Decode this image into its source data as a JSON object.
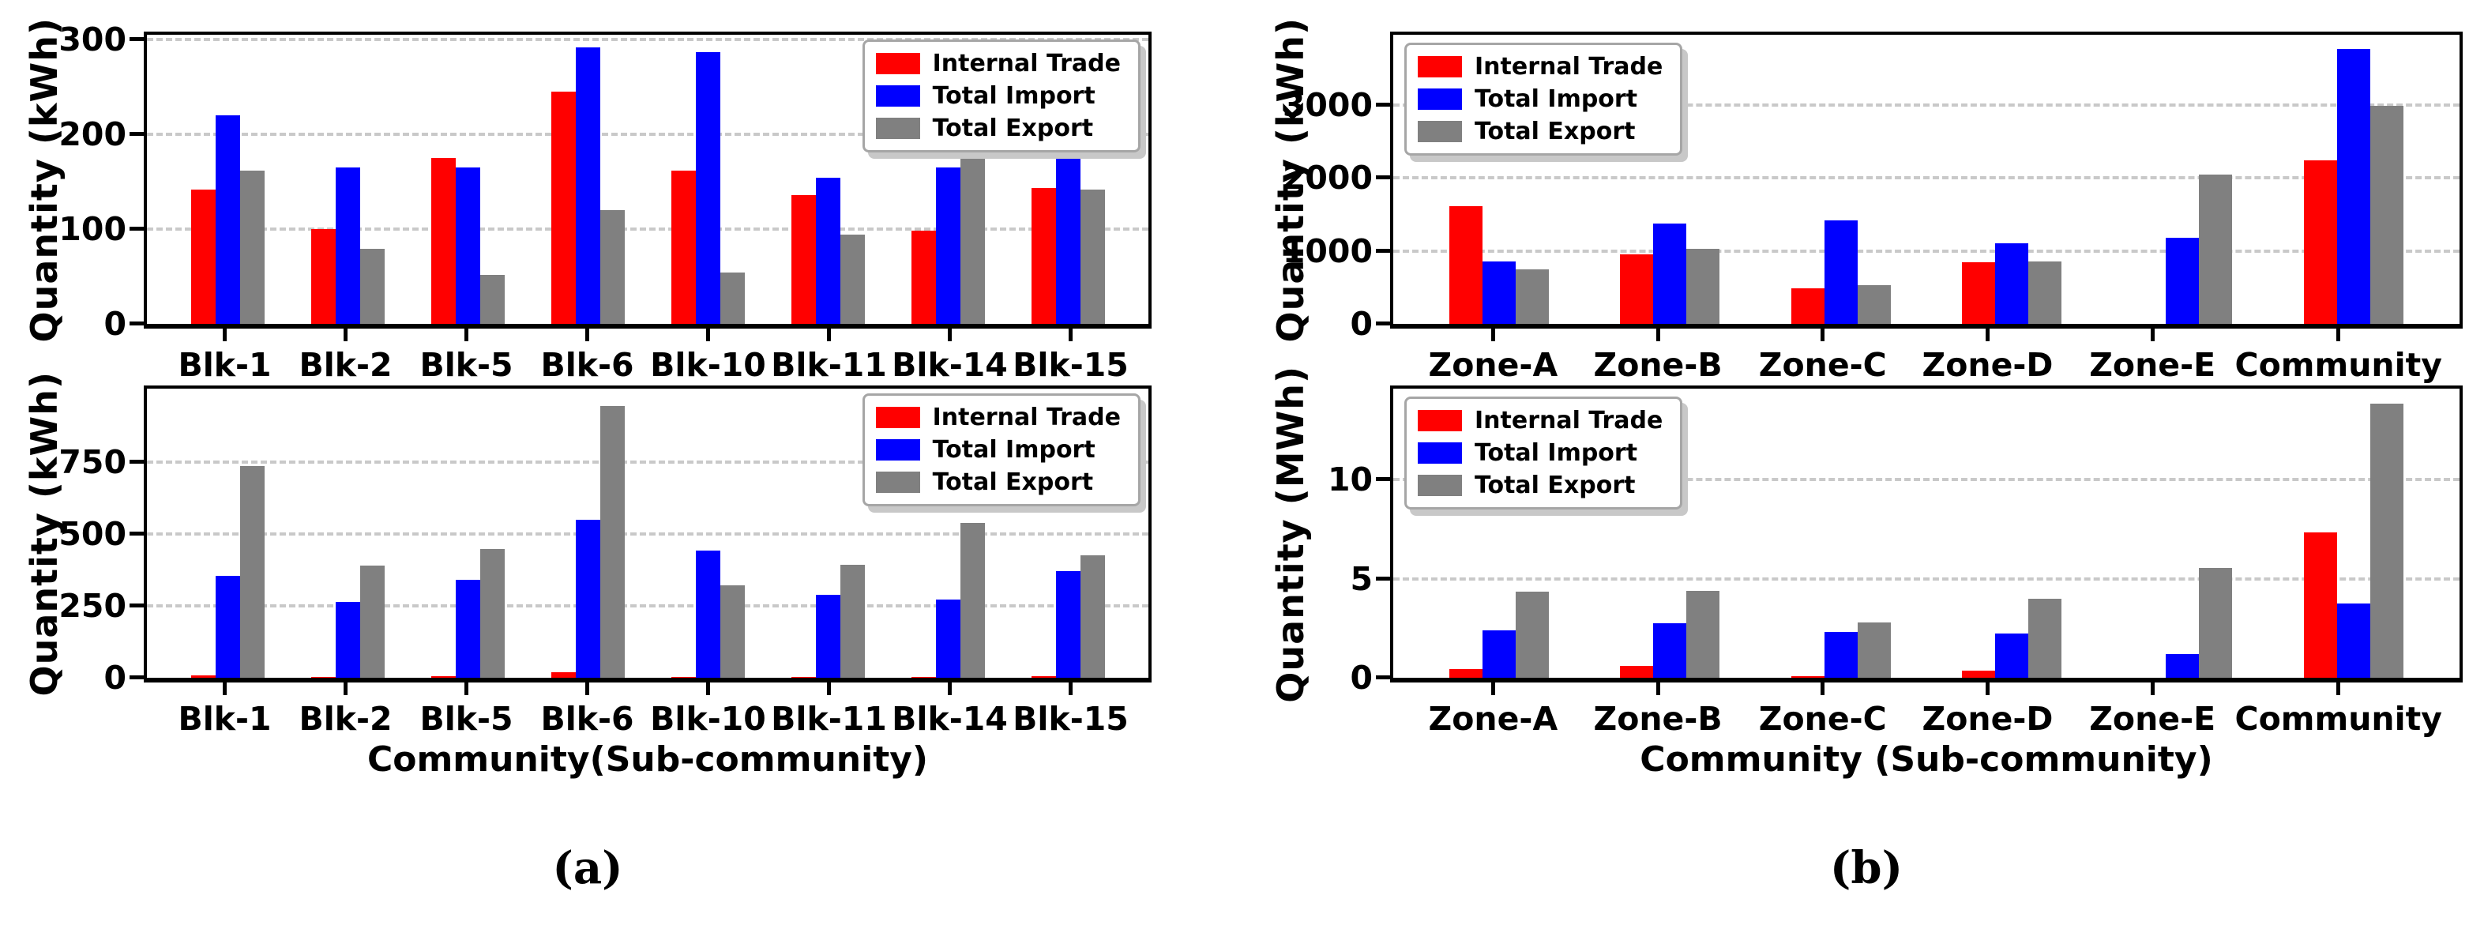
{
  "figure": {
    "caption_a": "(a)",
    "caption_b": "(b)"
  },
  "legend": {
    "items": [
      {
        "label": "Internal Trade",
        "color": "#ff0000"
      },
      {
        "label": "Total Import",
        "color": "#0000ff"
      },
      {
        "label": "Total Export",
        "color": "#808080"
      }
    ]
  },
  "chart_data": [
    {
      "id": "a-top",
      "type": "bar",
      "title": "",
      "ylabel": "Quantity (kWh)",
      "xlabel": "",
      "legend_pos": "right",
      "grid": "dashed-horizontal",
      "categories": [
        "Blk-1",
        "Blk-2",
        "Blk-5",
        "Blk-6",
        "Blk-10",
        "Blk-11",
        "Blk-14",
        "Blk-15"
      ],
      "yticks": [
        0,
        100,
        200,
        300
      ],
      "ylim": [
        0,
        305
      ],
      "ymax": 305,
      "series": [
        {
          "name": "Internal Trade",
          "color": "#ff0000",
          "values": [
            142,
            100,
            175,
            245,
            162,
            136,
            98,
            143
          ]
        },
        {
          "name": "Total Import",
          "color": "#0000ff",
          "values": [
            220,
            165,
            165,
            292,
            287,
            154,
            165,
            220
          ]
        },
        {
          "name": "Total Export",
          "color": "#808080",
          "values": [
            162,
            79,
            52,
            120,
            54,
            94,
            186,
            142
          ]
        }
      ]
    },
    {
      "id": "a-bottom",
      "type": "bar",
      "title": "",
      "ylabel": "Quantity (kWh)",
      "xlabel": "Community(Sub-community)",
      "legend_pos": "right",
      "grid": "dashed-horizontal",
      "categories": [
        "Blk-1",
        "Blk-2",
        "Blk-5",
        "Blk-6",
        "Blk-10",
        "Blk-11",
        "Blk-14",
        "Blk-15"
      ],
      "yticks": [
        0,
        250,
        500,
        750
      ],
      "ylim": [
        0,
        1005
      ],
      "ymax": 1005,
      "series": [
        {
          "name": "Internal Trade",
          "color": "#ff0000",
          "values": [
            8,
            2,
            6,
            20,
            2,
            2,
            2,
            5
          ]
        },
        {
          "name": "Total Import",
          "color": "#0000ff",
          "values": [
            355,
            265,
            340,
            550,
            443,
            287,
            273,
            370
          ]
        },
        {
          "name": "Total Export",
          "color": "#808080",
          "values": [
            735,
            390,
            447,
            945,
            320,
            393,
            537,
            425
          ]
        }
      ]
    },
    {
      "id": "b-top",
      "type": "bar",
      "title": "",
      "ylabel": "Quantity (kWh)",
      "xlabel": "",
      "legend_pos": "left",
      "grid": "dashed-horizontal",
      "categories": [
        "Zone-A",
        "Zone-B",
        "Zone-C",
        "Zone-D",
        "Zone-E",
        "Community"
      ],
      "yticks": [
        0,
        1000,
        2000,
        3000
      ],
      "ylim": [
        0,
        3960
      ],
      "ymax": 3960,
      "series": [
        {
          "name": "Internal Trade",
          "color": "#ff0000",
          "values": [
            1610,
            955,
            490,
            845,
            0,
            2240
          ]
        },
        {
          "name": "Total Import",
          "color": "#0000ff",
          "values": [
            860,
            1375,
            1415,
            1100,
            1180,
            3770
          ]
        },
        {
          "name": "Total Export",
          "color": "#808080",
          "values": [
            750,
            1030,
            525,
            852,
            2040,
            2990
          ]
        }
      ]
    },
    {
      "id": "b-bottom",
      "type": "bar",
      "title": "",
      "ylabel": "Quantity (MWh)",
      "xlabel": "Community (Sub-community)",
      "legend_pos": "left",
      "grid": "dashed-horizontal",
      "categories": [
        "Zone-A",
        "Zone-B",
        "Zone-C",
        "Zone-D",
        "Zone-E",
        "Community"
      ],
      "yticks": [
        0,
        5,
        10
      ],
      "ylim": [
        0,
        14.6
      ],
      "ymax": 14.6,
      "series": [
        {
          "name": "Internal Trade",
          "color": "#ff0000",
          "values": [
            0.45,
            0.6,
            0.1,
            0.35,
            0,
            7.35
          ]
        },
        {
          "name": "Total Import",
          "color": "#0000ff",
          "values": [
            2.4,
            2.75,
            2.3,
            2.25,
            1.2,
            3.75
          ]
        },
        {
          "name": "Total Export",
          "color": "#808080",
          "values": [
            4.35,
            4.4,
            2.8,
            4.0,
            5.55,
            13.85
          ]
        }
      ]
    }
  ]
}
